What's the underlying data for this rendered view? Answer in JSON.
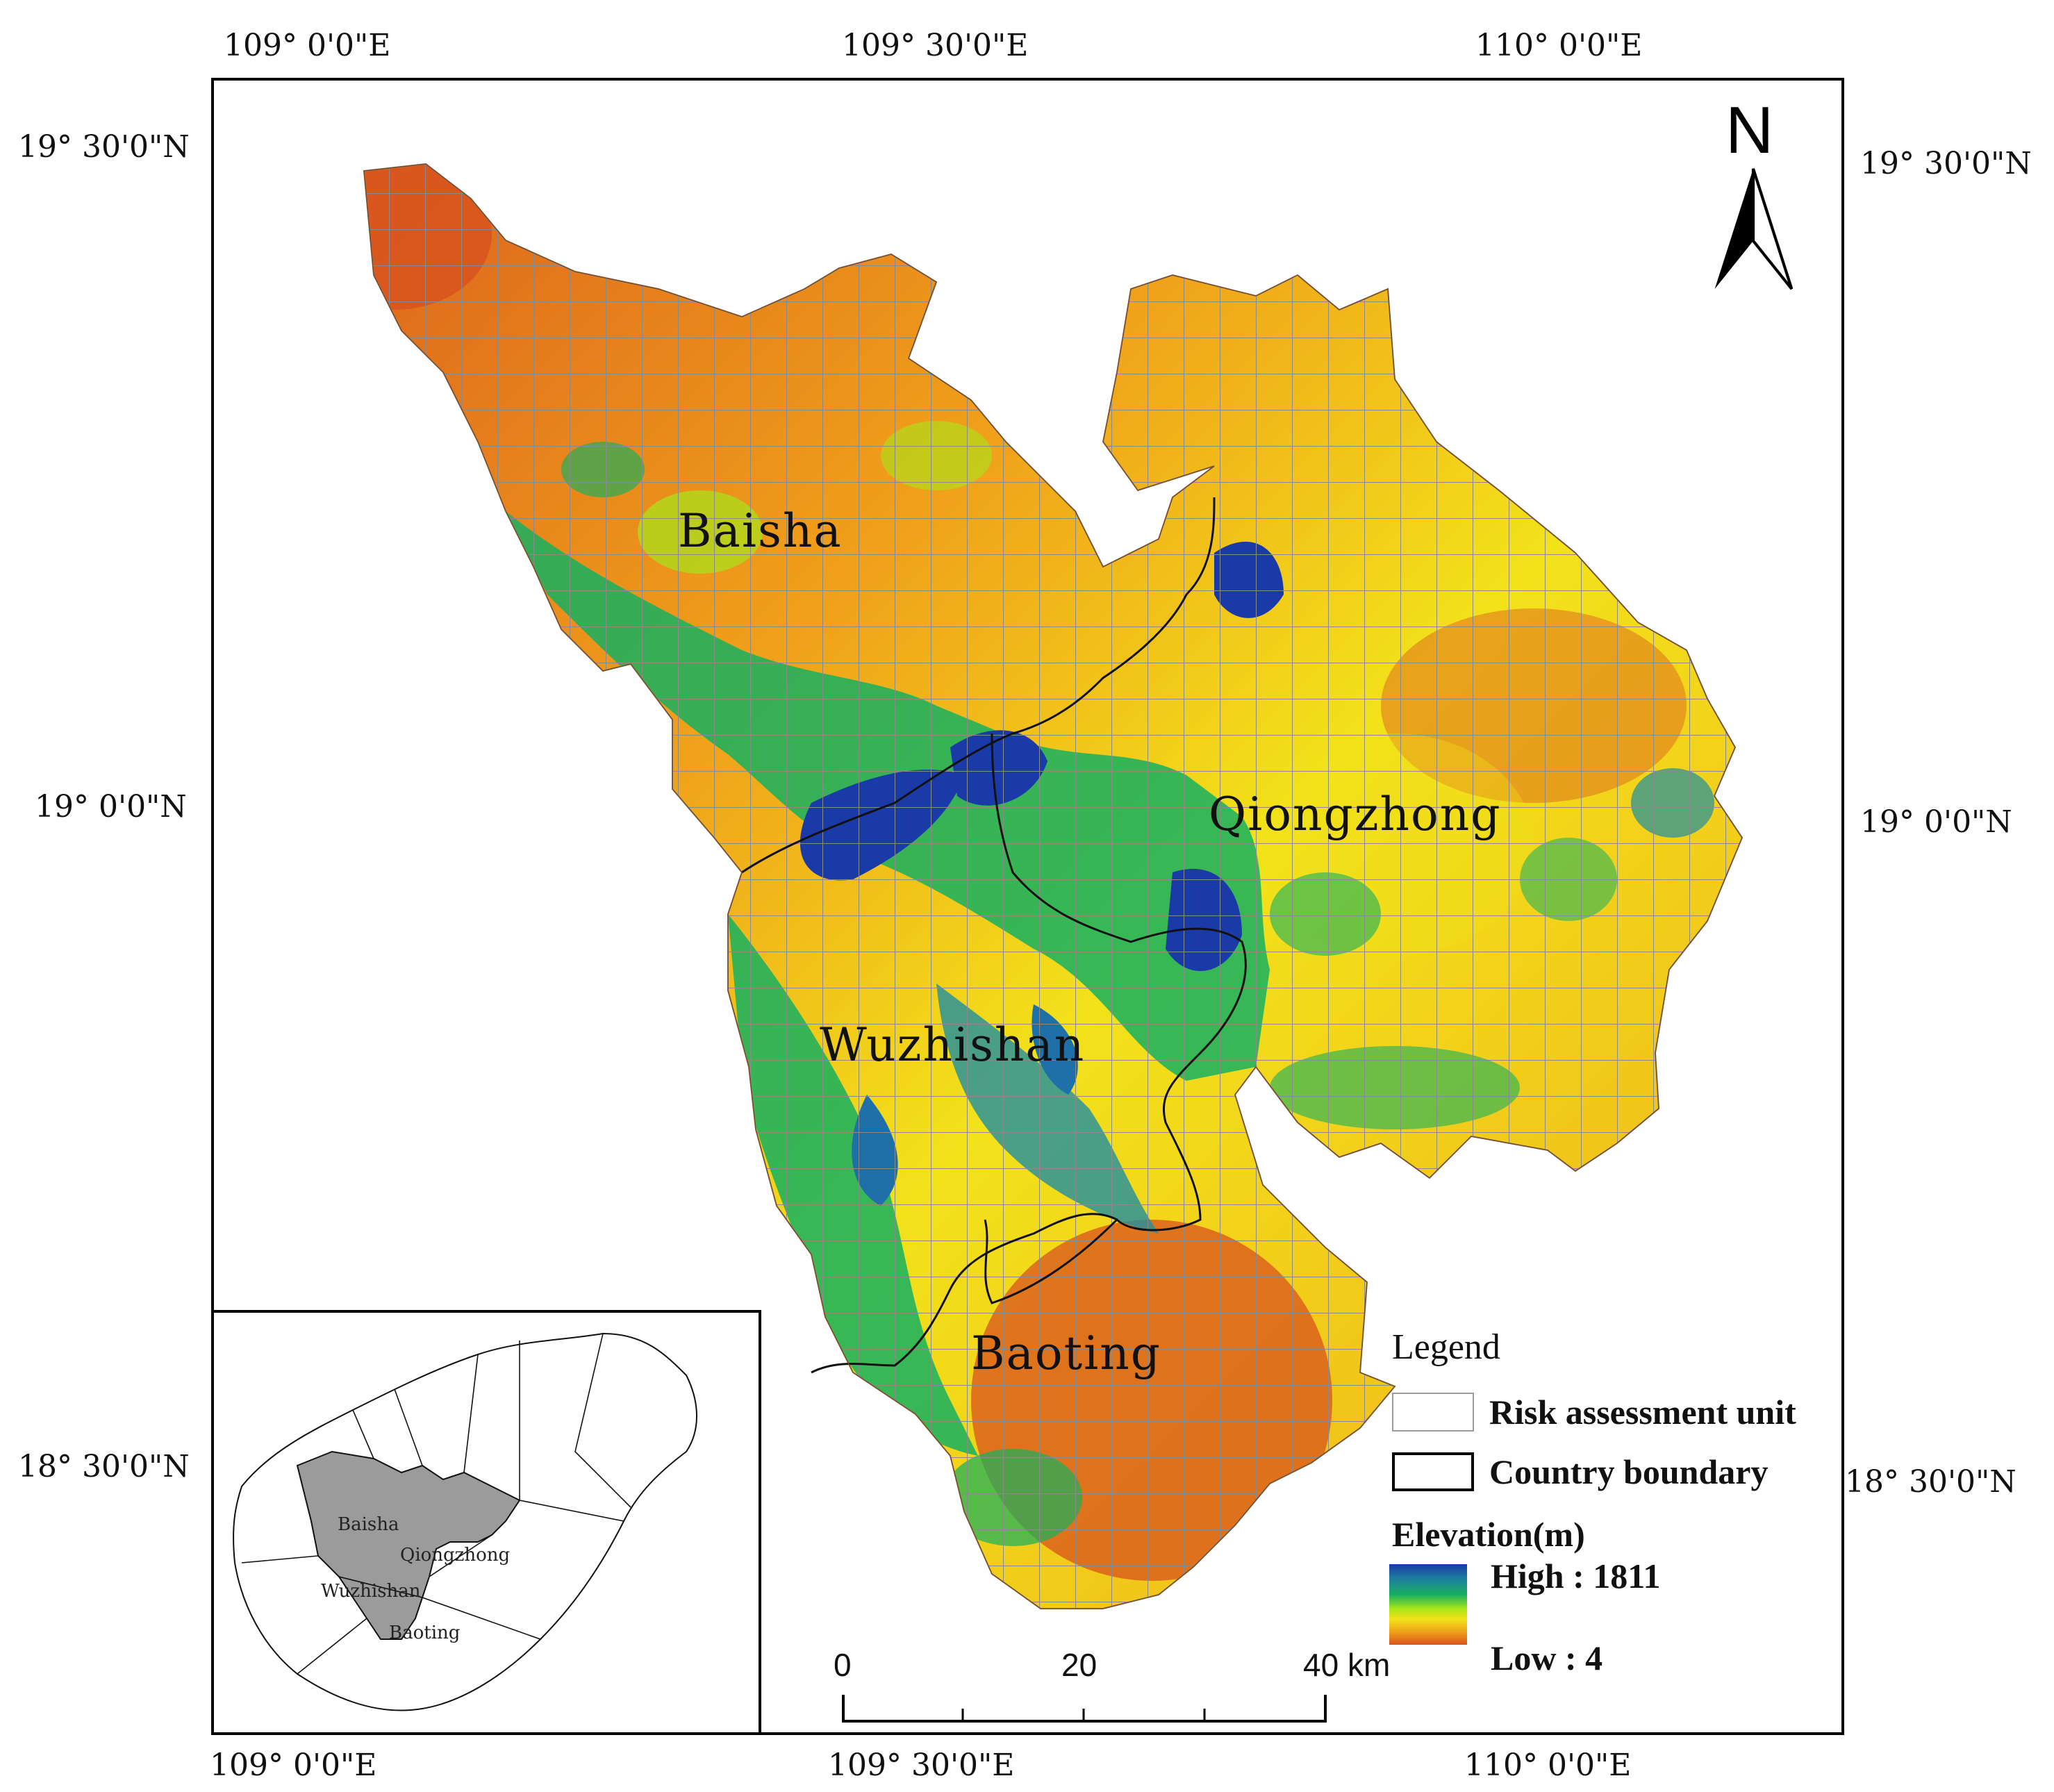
{
  "coords": {
    "top": [
      "109° 0'0\"E",
      "109° 30'0\"E",
      "110° 0'0\"E"
    ],
    "bottom": [
      "109° 0'0\"E",
      "109° 30'0\"E",
      "110° 0'0\"E"
    ],
    "left": [
      "19° 30'0\"N",
      "19° 0'0\"N",
      "18° 30'0\"N"
    ],
    "right": [
      "19° 30'0\"N",
      "19° 0'0\"N",
      "18° 30'0\"N"
    ]
  },
  "counties": {
    "baisha": "Baisha",
    "qiongzhong": "Qiongzhong",
    "wuzhishan": "Wuzhishan",
    "baoting": "Baoting"
  },
  "north_arrow": "N",
  "legend": {
    "title": "Legend",
    "risk_unit": "Risk assessment unit",
    "county_boundary": "Country boundary",
    "elevation_title": "Elevation(m)",
    "high": "High : 1811",
    "low": "Low : 4"
  },
  "elevation": {
    "min": 4,
    "max": 1811
  },
  "scale_bar": {
    "labels": [
      "0",
      "20",
      "40 km"
    ]
  },
  "inset": {
    "baisha": "Baisha",
    "qiongzhong": "Qiongzhong",
    "wuzhishan": "Wuzhishan",
    "baoting": "Baoting"
  },
  "colors": {
    "high": "#1a3aa8",
    "mid_high": "#16b060",
    "mid": "#f2e21a",
    "low": "#d8531e",
    "grid": "#9a9a9a",
    "inset_fill": "#9b9b9b"
  }
}
